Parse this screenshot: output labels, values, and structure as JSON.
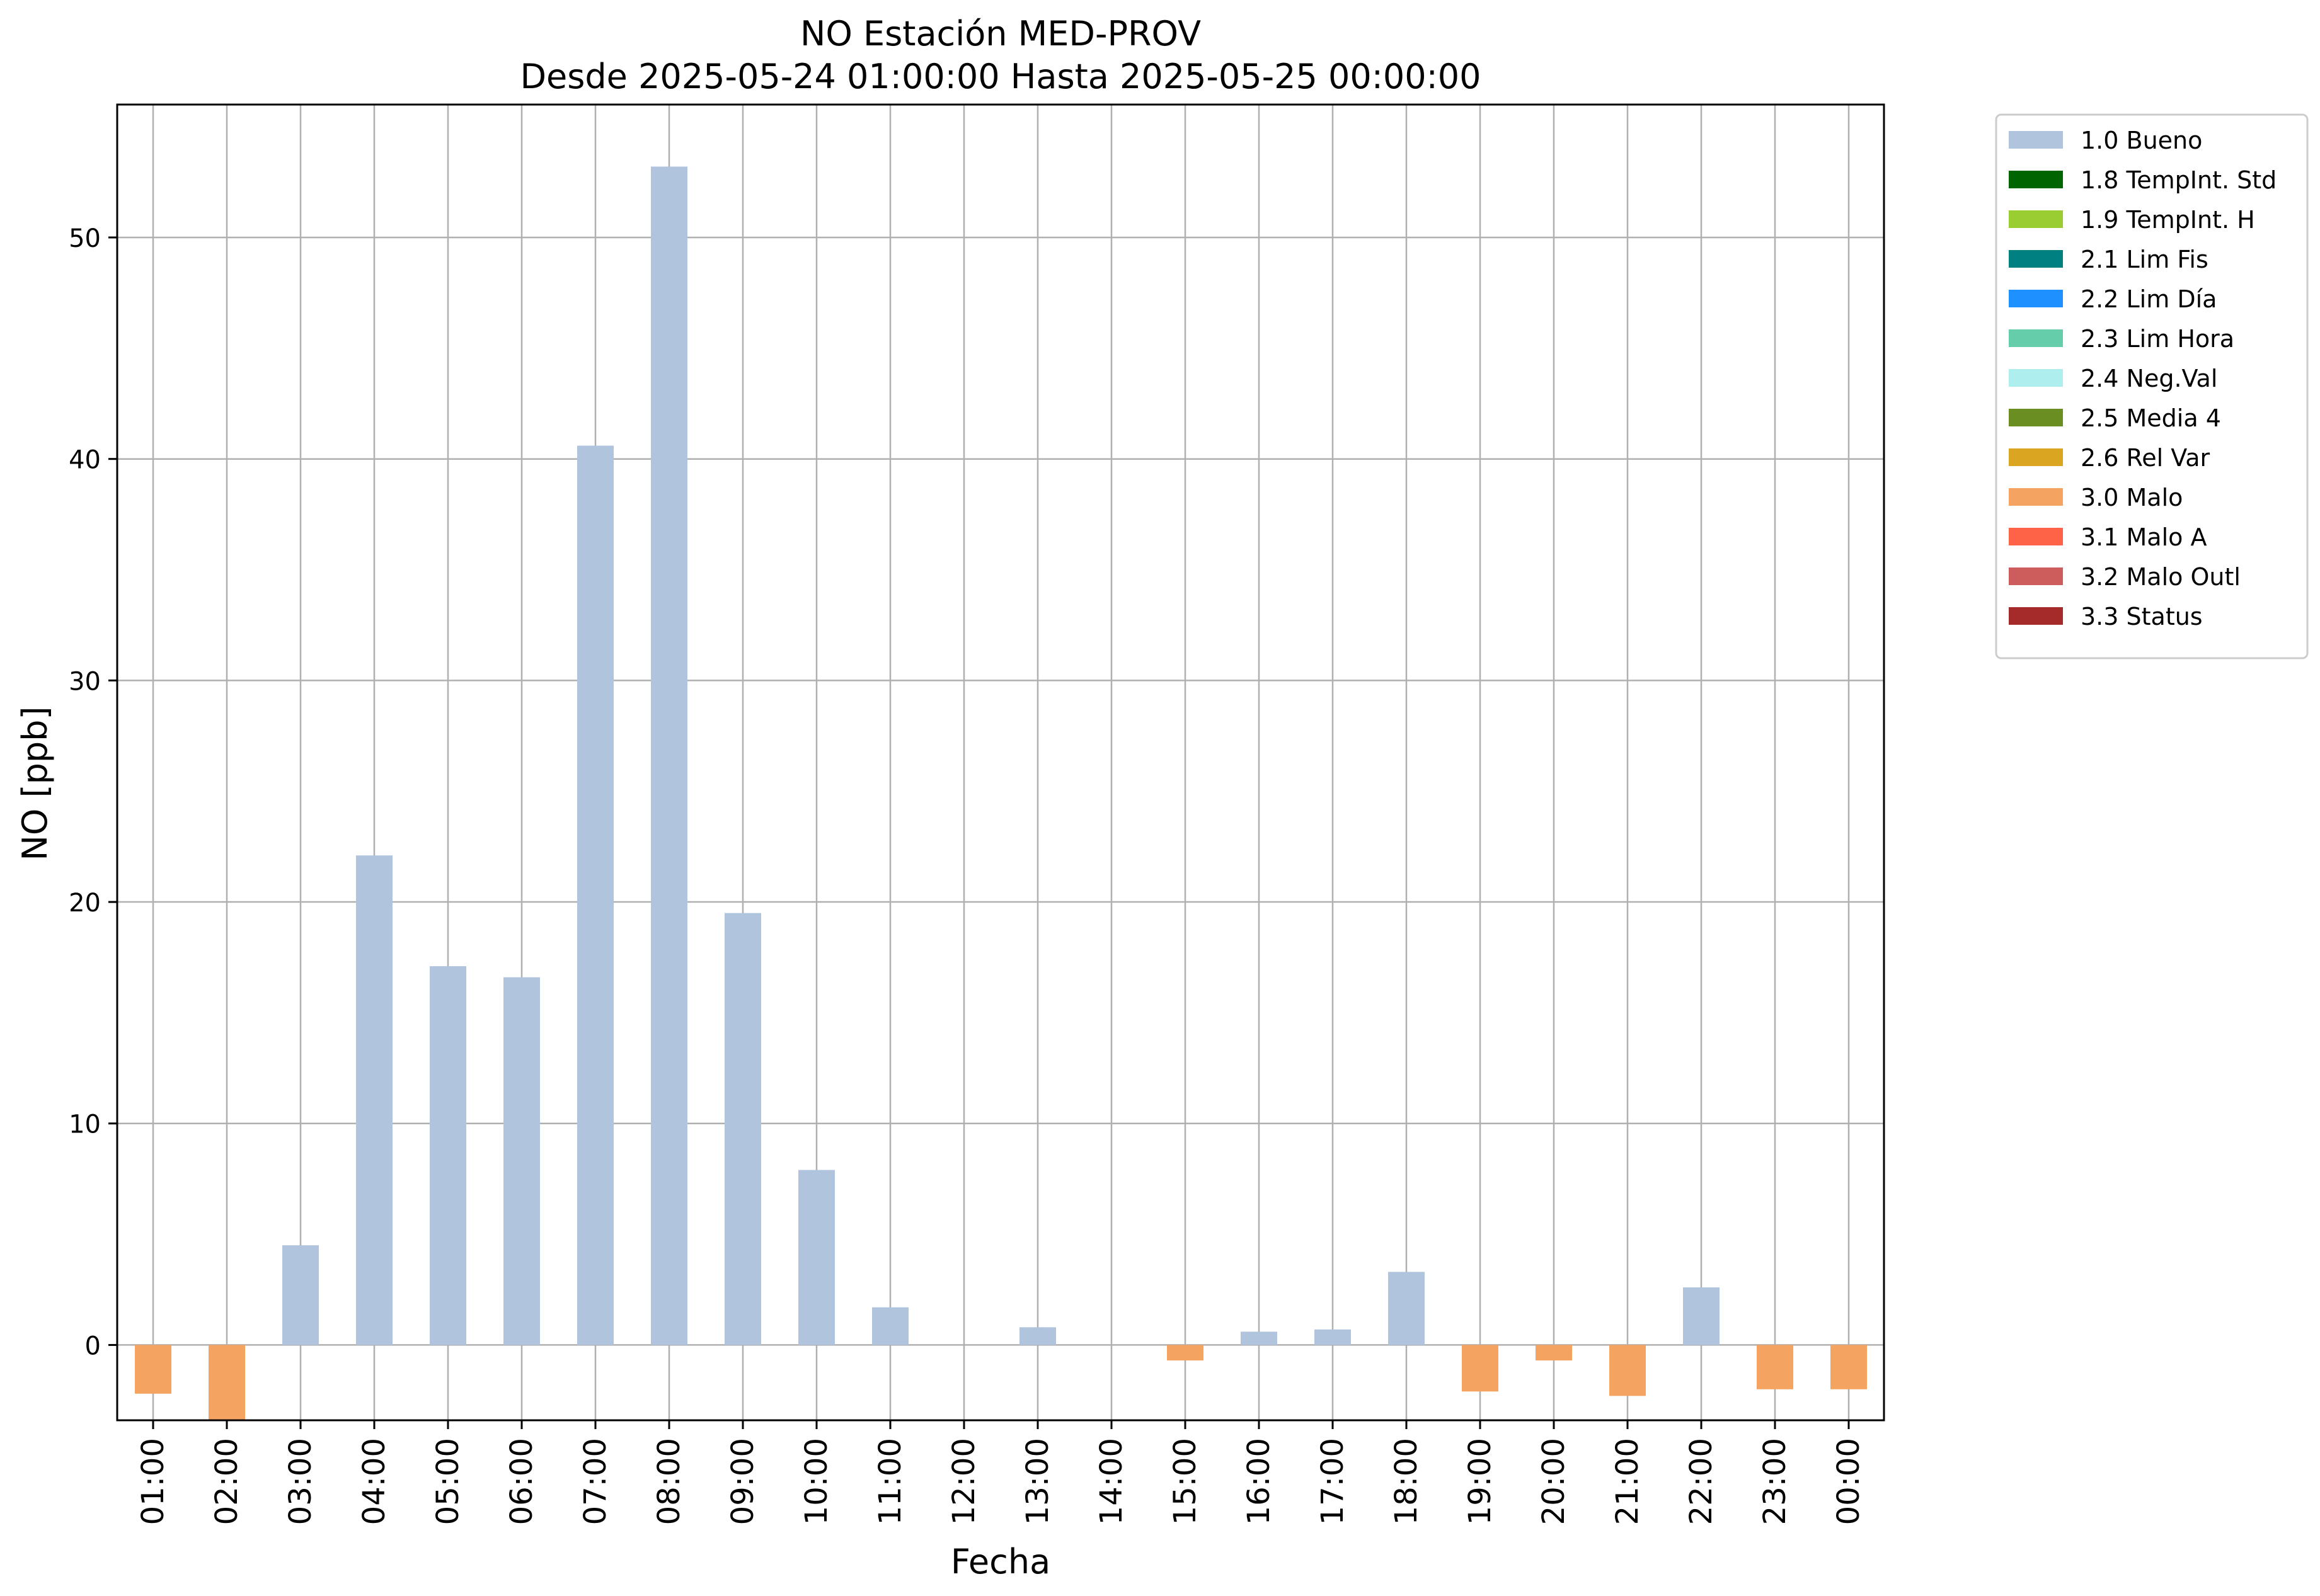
{
  "chart_data": {
    "type": "bar",
    "title": "NO Estación MED-PROV",
    "subtitle": "Desde 2025-05-24 01:00:00 Hasta 2025-05-25 00:00:00",
    "xlabel": "Fecha",
    "ylabel": "NO [ppb]",
    "ylim": [
      -3.4,
      56
    ],
    "yticks": [
      0,
      10,
      20,
      30,
      40,
      50
    ],
    "grid": true,
    "legend_position": "outside-top-right",
    "categories": [
      "01:00",
      "02:00",
      "03:00",
      "04:00",
      "05:00",
      "06:00",
      "07:00",
      "08:00",
      "09:00",
      "10:00",
      "11:00",
      "12:00",
      "13:00",
      "14:00",
      "15:00",
      "16:00",
      "17:00",
      "18:00",
      "19:00",
      "20:00",
      "21:00",
      "22:00",
      "23:00",
      "00:00"
    ],
    "values": [
      -2.2,
      -3.6,
      4.5,
      22.1,
      17.1,
      16.6,
      40.6,
      53.2,
      19.5,
      7.9,
      1.7,
      0,
      0.8,
      0,
      -0.7,
      0.6,
      0.7,
      3.3,
      -2.1,
      -0.7,
      -2.3,
      2.6,
      -2.0,
      -2.0
    ],
    "quality": [
      "3.0 Malo",
      "3.0 Malo",
      "1.0 Bueno",
      "1.0 Bueno",
      "1.0 Bueno",
      "1.0 Bueno",
      "1.0 Bueno",
      "1.0 Bueno",
      "1.0 Bueno",
      "1.0 Bueno",
      "1.0 Bueno",
      "1.0 Bueno",
      "1.0 Bueno",
      "1.0 Bueno",
      "3.0 Malo",
      "1.0 Bueno",
      "1.0 Bueno",
      "1.0 Bueno",
      "3.0 Malo",
      "3.0 Malo",
      "3.0 Malo",
      "1.0 Bueno",
      "3.0 Malo",
      "3.0 Malo"
    ],
    "legend": [
      {
        "label": "1.0 Bueno",
        "color": "#b0c4de"
      },
      {
        "label": "1.8 TempInt. Std",
        "color": "#006400"
      },
      {
        "label": "1.9 TempInt. H",
        "color": "#9acd32"
      },
      {
        "label": "2.1 Lim Fis",
        "color": "#008080"
      },
      {
        "label": "2.2 Lim Día",
        "color": "#1e90ff"
      },
      {
        "label": "2.3 Lim Hora",
        "color": "#66cdaa"
      },
      {
        "label": "2.4 Neg.Val",
        "color": "#afeeee"
      },
      {
        "label": "2.5 Media 4",
        "color": "#6b8e23"
      },
      {
        "label": "2.6 Rel Var",
        "color": "#daa520"
      },
      {
        "label": "3.0 Malo",
        "color": "#f4a460"
      },
      {
        "label": "3.1 Malo A",
        "color": "#ff6347"
      },
      {
        "label": "3.2 Malo Outl",
        "color": "#cd5c5c"
      },
      {
        "label": "3.3 Status",
        "color": "#a52a2a"
      }
    ]
  }
}
